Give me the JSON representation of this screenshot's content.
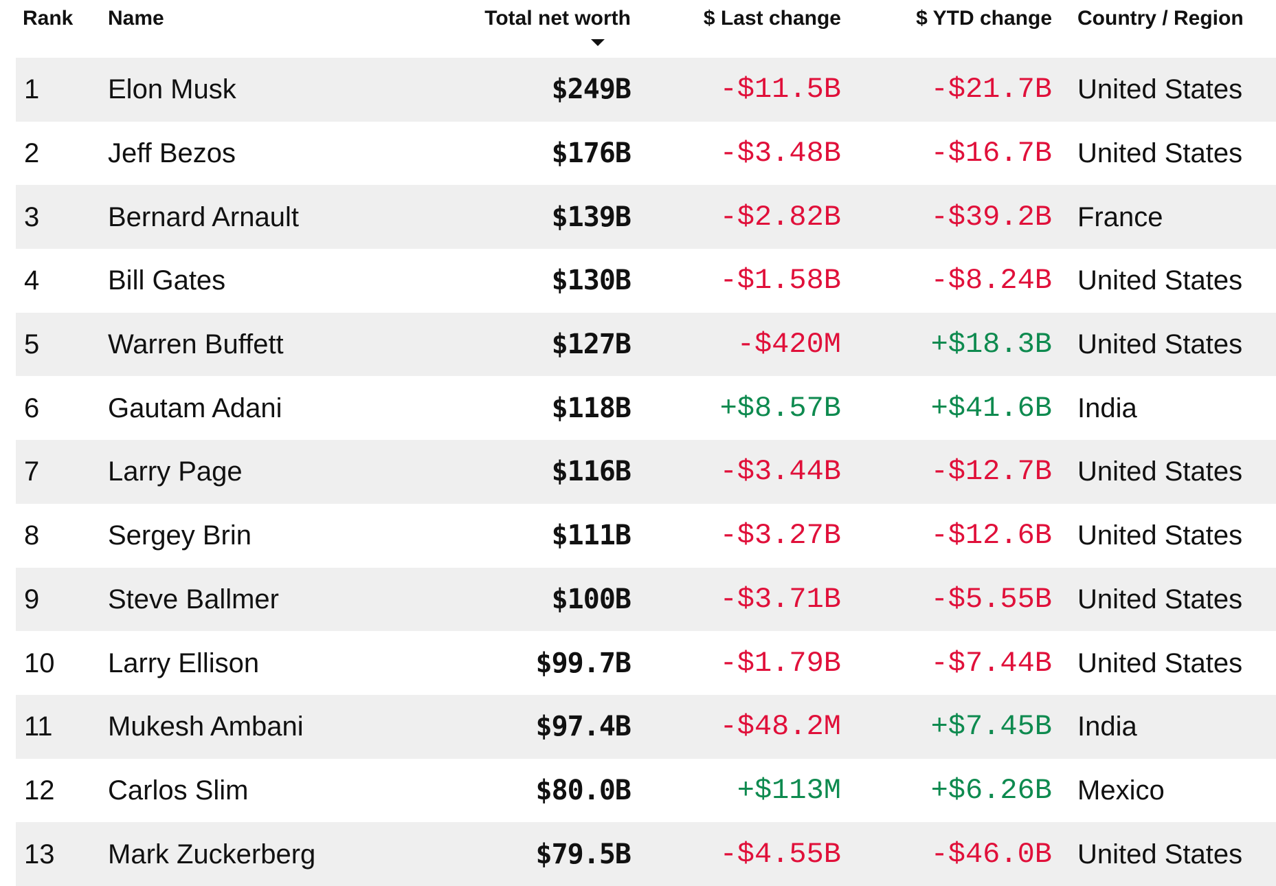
{
  "colors": {
    "negative": "#e0103a",
    "positive": "#0e8a4f",
    "row_shade": "#efefef"
  },
  "columns": {
    "rank": "Rank",
    "name": "Name",
    "total_net_worth": "Total net worth",
    "last_change": "$ Last change",
    "ytd_change": "$ YTD change",
    "country": "Country / Region"
  },
  "sort": {
    "column": "total_net_worth",
    "direction": "descending",
    "icon": "caret-down-icon"
  },
  "rows": [
    {
      "rank": "1",
      "name": "Elon Musk",
      "worth": "$249B",
      "last": "-$11.5B",
      "ytd": "-$21.7B",
      "country": "United States"
    },
    {
      "rank": "2",
      "name": "Jeff Bezos",
      "worth": "$176B",
      "last": "-$3.48B",
      "ytd": "-$16.7B",
      "country": "United States"
    },
    {
      "rank": "3",
      "name": "Bernard Arnault",
      "worth": "$139B",
      "last": "-$2.82B",
      "ytd": "-$39.2B",
      "country": "France"
    },
    {
      "rank": "4",
      "name": "Bill Gates",
      "worth": "$130B",
      "last": "-$1.58B",
      "ytd": "-$8.24B",
      "country": "United States"
    },
    {
      "rank": "5",
      "name": "Warren Buffett",
      "worth": "$127B",
      "last": "-$420M",
      "ytd": "+$18.3B",
      "country": "United States"
    },
    {
      "rank": "6",
      "name": "Gautam Adani",
      "worth": "$118B",
      "last": "+$8.57B",
      "ytd": "+$41.6B",
      "country": "India"
    },
    {
      "rank": "7",
      "name": "Larry Page",
      "worth": "$116B",
      "last": "-$3.44B",
      "ytd": "-$12.7B",
      "country": "United States"
    },
    {
      "rank": "8",
      "name": "Sergey Brin",
      "worth": "$111B",
      "last": "-$3.27B",
      "ytd": "-$12.6B",
      "country": "United States"
    },
    {
      "rank": "9",
      "name": "Steve Ballmer",
      "worth": "$100B",
      "last": "-$3.71B",
      "ytd": "-$5.55B",
      "country": "United States"
    },
    {
      "rank": "10",
      "name": "Larry Ellison",
      "worth": "$99.7B",
      "last": "-$1.79B",
      "ytd": "-$7.44B",
      "country": "United States"
    },
    {
      "rank": "11",
      "name": "Mukesh Ambani",
      "worth": "$97.4B",
      "last": "-$48.2M",
      "ytd": "+$7.45B",
      "country": "India"
    },
    {
      "rank": "12",
      "name": "Carlos Slim",
      "worth": "$80.0B",
      "last": "+$113M",
      "ytd": "+$6.26B",
      "country": "Mexico"
    },
    {
      "rank": "13",
      "name": "Mark Zuckerberg",
      "worth": "$79.5B",
      "last": "-$4.55B",
      "ytd": "-$46.0B",
      "country": "United States"
    }
  ]
}
